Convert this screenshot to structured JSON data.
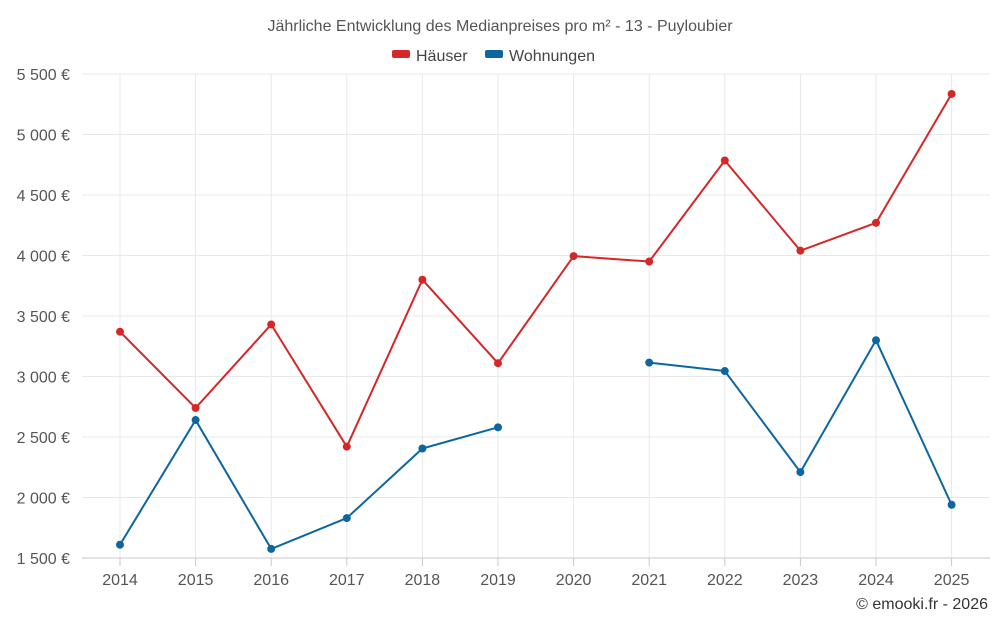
{
  "chart_data": {
    "type": "line",
    "title": "Jährliche Entwicklung des Medianpreises pro m² - 13 - Puyloubier",
    "categories": [
      "2014",
      "2015",
      "2016",
      "2017",
      "2018",
      "2019",
      "2020",
      "2021",
      "2022",
      "2023",
      "2024",
      "2025"
    ],
    "series": [
      {
        "name": "Häuser",
        "color": "#d62728",
        "values": [
          3370,
          2740,
          3430,
          2420,
          3800,
          3110,
          3995,
          3950,
          4785,
          4040,
          4270,
          5335
        ]
      },
      {
        "name": "Wohnungen",
        "color": "#0d66a0",
        "values": [
          1610,
          2640,
          1575,
          1830,
          2405,
          2580,
          null,
          3115,
          3045,
          2210,
          3300,
          1940
        ]
      }
    ],
    "ylim": [
      1500,
      5500
    ],
    "yticks": [
      1500,
      2000,
      2500,
      3000,
      3500,
      4000,
      4500,
      5000,
      5500
    ],
    "ytick_labels": [
      "1 500 €",
      "2 000 €",
      "2 500 €",
      "3 000 €",
      "3 500 €",
      "4 000 €",
      "4 500 €",
      "5 000 €",
      "5 500 €"
    ],
    "xlabel": "",
    "ylabel": "",
    "grid": true,
    "legend": "top-center"
  },
  "credit": "© emooki.fr - 2026"
}
